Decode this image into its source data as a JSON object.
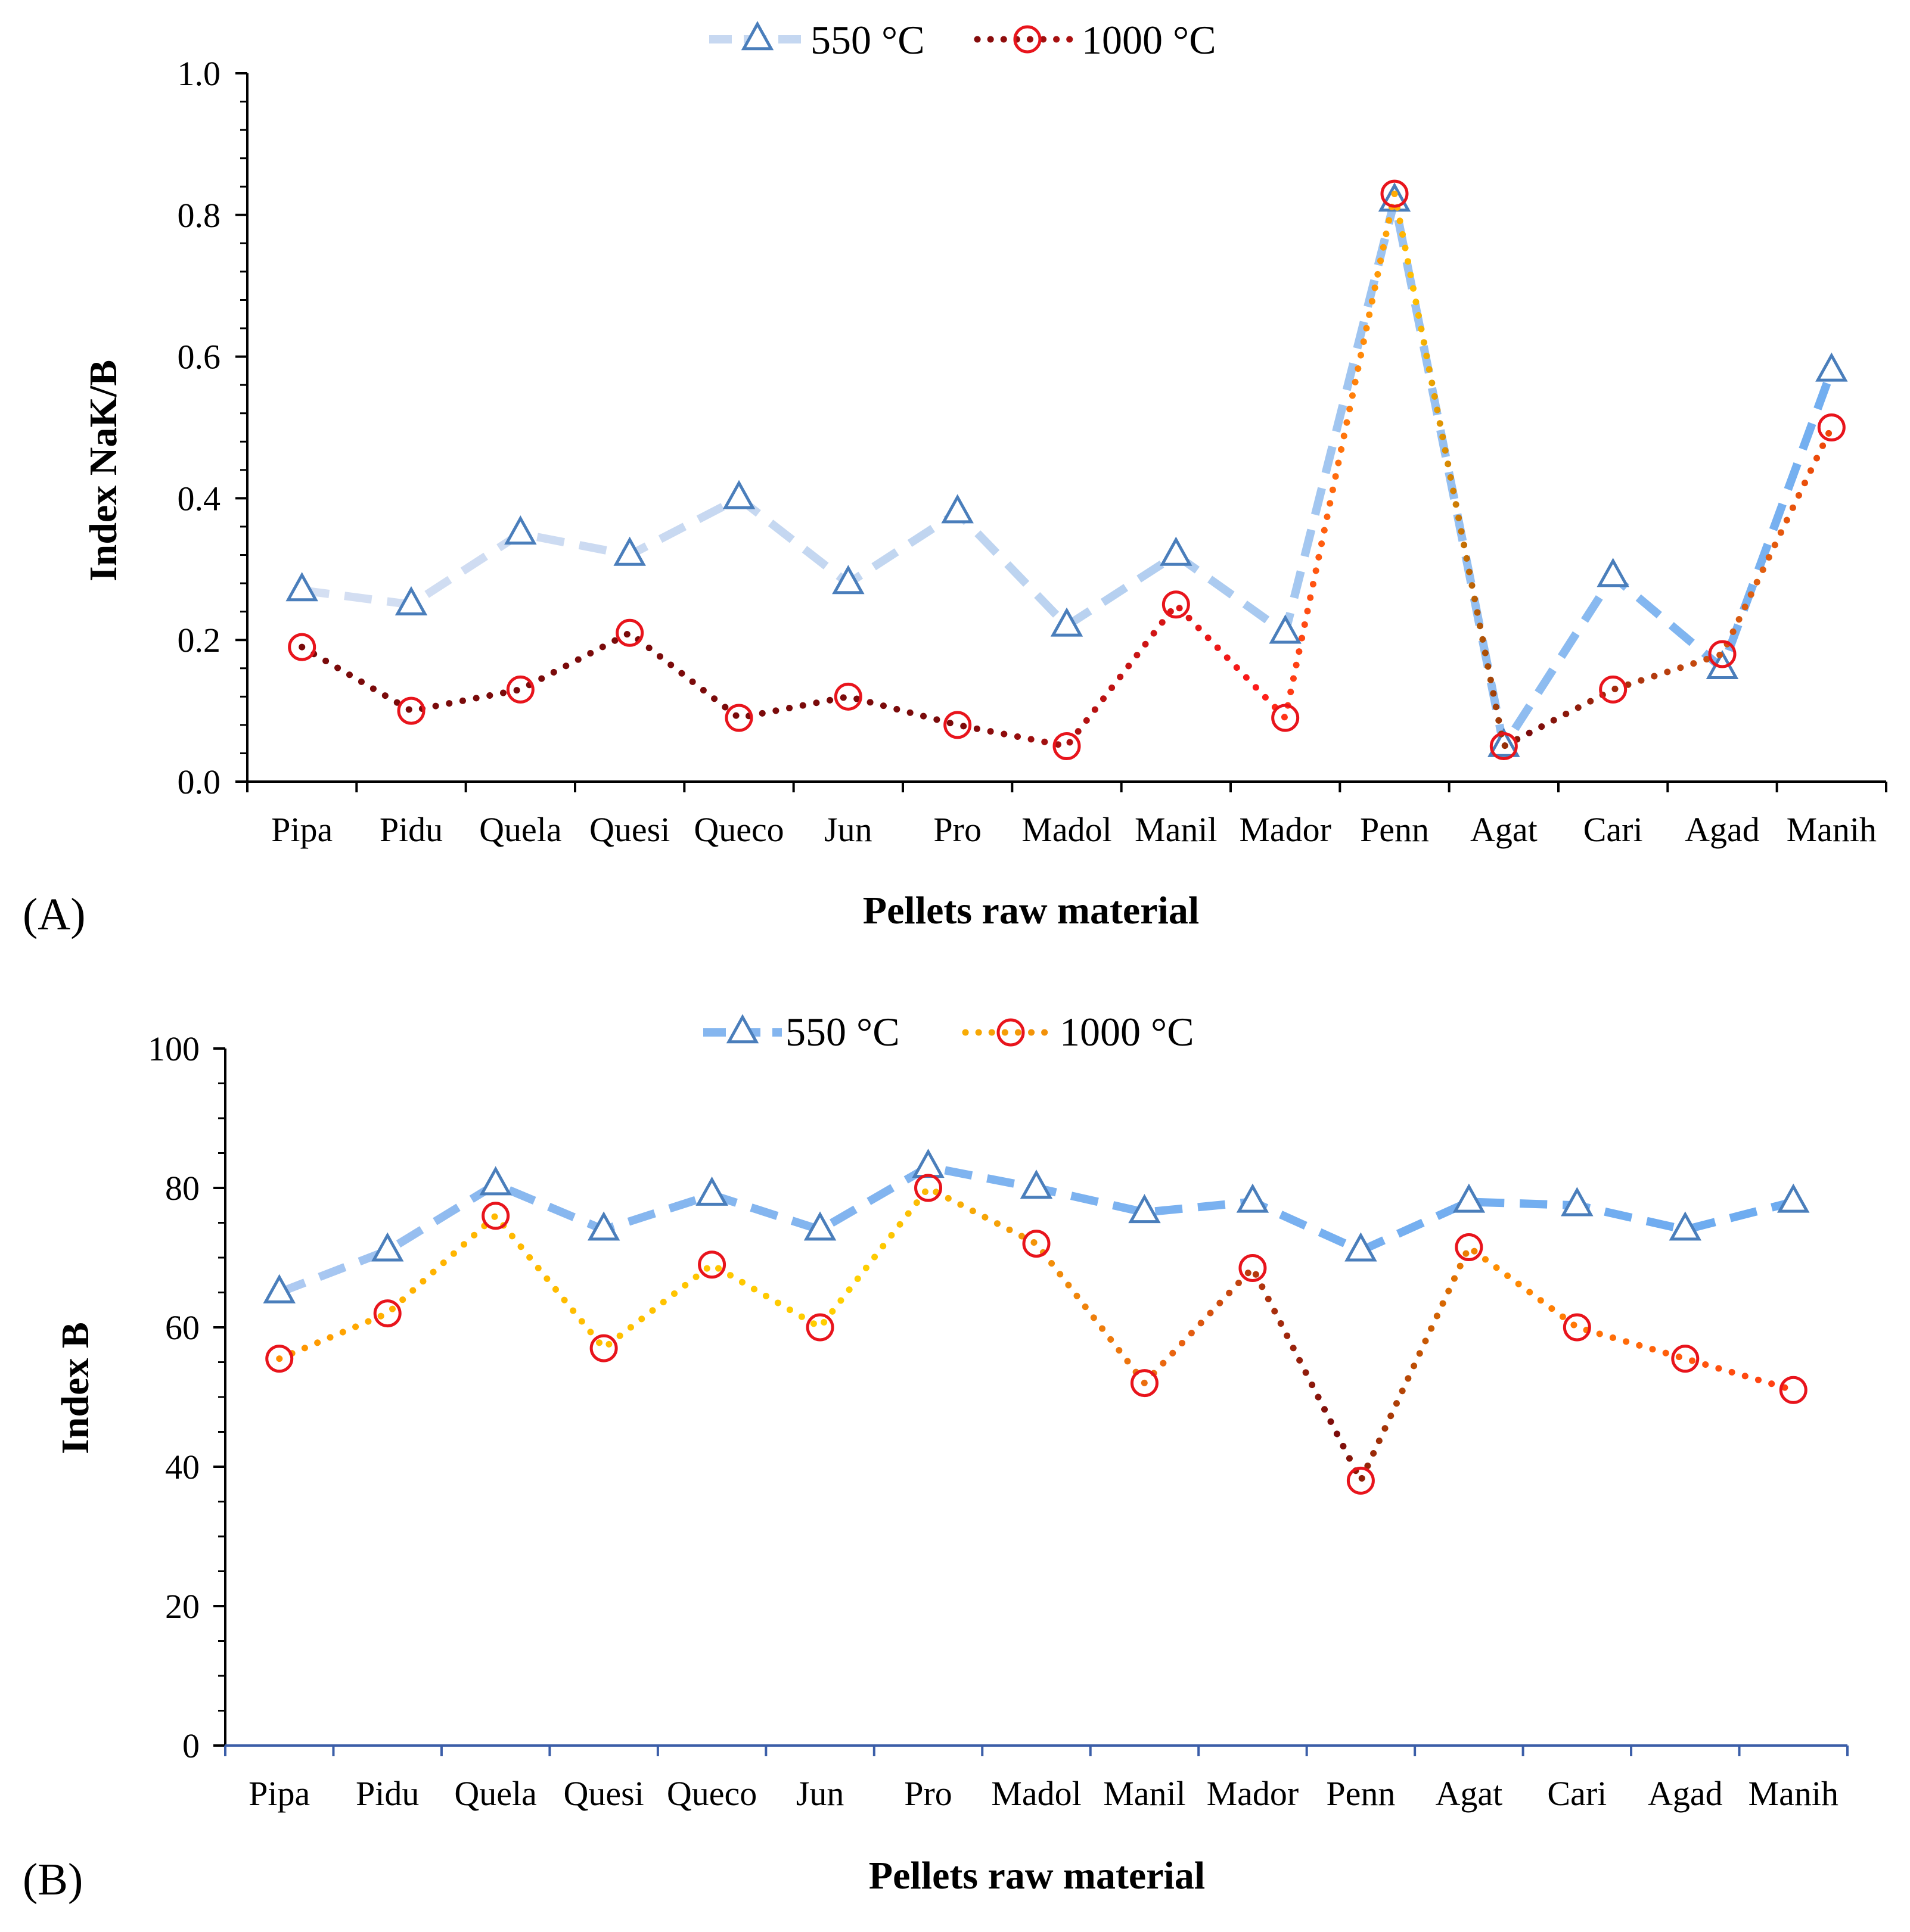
{
  "chart_data": [
    {
      "type": "line",
      "panel_label": "(A)",
      "title": "",
      "xlabel": "Pellets raw material",
      "ylabel": "Index NaK/B",
      "categories": [
        "Pipa",
        "Pidu",
        "Quela",
        "Quesi",
        "Queco",
        "Jun",
        "Pro",
        "Madol",
        "Manil",
        "Mador",
        "Penn",
        "Agat",
        "Cari",
        "Agad",
        "Manih"
      ],
      "ylim": [
        0,
        1.0
      ],
      "yticks": [
        0.0,
        0.2,
        0.4,
        0.6,
        0.8,
        1.0
      ],
      "ytick_labels": [
        "0.0",
        "0.2",
        "0.4",
        "0.6",
        "0.8",
        "1.0"
      ],
      "legend_position": "top-center",
      "series": [
        {
          "name": "550 °C",
          "marker": "triangle",
          "values": [
            0.27,
            0.25,
            0.35,
            0.32,
            0.4,
            0.28,
            0.38,
            0.22,
            0.32,
            0.21,
            0.82,
            0.05,
            0.29,
            0.16,
            0.58
          ]
        },
        {
          "name": "1000 °C",
          "marker": "circle",
          "values": [
            0.19,
            0.1,
            0.13,
            0.21,
            0.09,
            0.12,
            0.08,
            0.05,
            0.25,
            0.09,
            0.83,
            0.05,
            0.13,
            0.18,
            0.5
          ]
        }
      ]
    },
    {
      "type": "line",
      "panel_label": "(B)",
      "title": "",
      "xlabel": "Pellets raw material",
      "ylabel": "Index B",
      "categories": [
        "Pipa",
        "Pidu",
        "Quela",
        "Quesi",
        "Queco",
        "Jun",
        "Pro",
        "Madol",
        "Manil",
        "Mador",
        "Penn",
        "Agat",
        "Cari",
        "Agad",
        "Manih"
      ],
      "ylim": [
        0,
        100
      ],
      "yticks": [
        0,
        20,
        40,
        60,
        80,
        100
      ],
      "ytick_labels": [
        "0",
        "20",
        "40",
        "60",
        "80",
        "100"
      ],
      "legend_position": "top-center",
      "series": [
        {
          "name": "550 °C",
          "marker": "triangle",
          "values": [
            65,
            71,
            80.5,
            74,
            79,
            74,
            83,
            80,
            76.5,
            78,
            71,
            78,
            77.5,
            74,
            78
          ]
        },
        {
          "name": "1000 °C",
          "marker": "circle",
          "values": [
            55.5,
            62,
            76,
            57,
            69,
            60,
            80,
            72,
            52,
            68.5,
            38,
            71.5,
            60,
            55.5,
            51
          ]
        }
      ]
    }
  ]
}
